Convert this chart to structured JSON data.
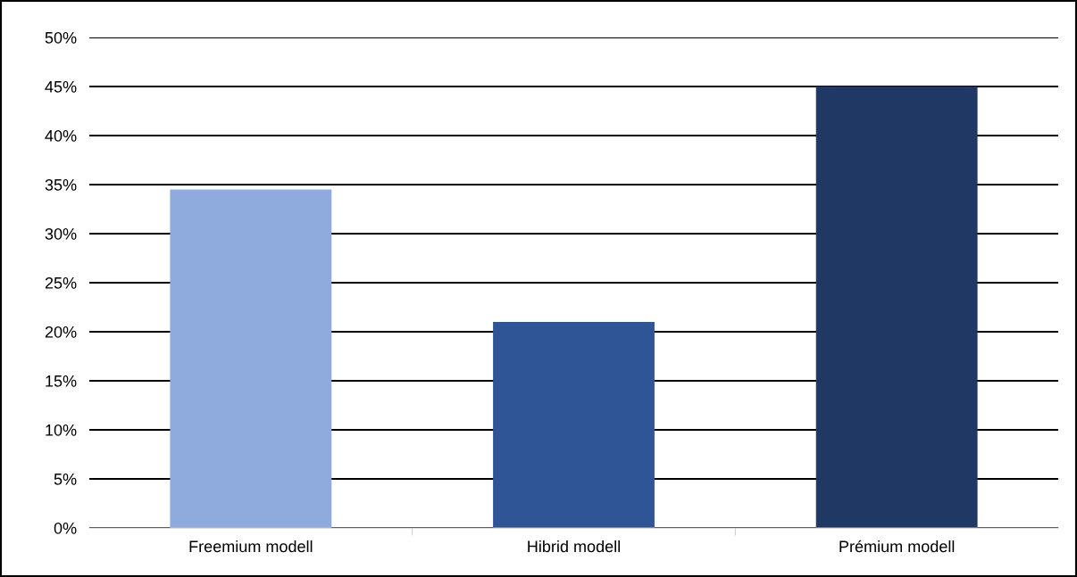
{
  "chart_data": {
    "type": "bar",
    "categories": [
      "Freemium modell",
      "Hibrid modell",
      "Prémium modell"
    ],
    "values": [
      34.5,
      21,
      45
    ],
    "colors": [
      "#8faadc",
      "#2f5597",
      "#203864"
    ],
    "ylim": [
      0,
      50
    ],
    "yticks": [
      {
        "value": 0,
        "label": "0%"
      },
      {
        "value": 5,
        "label": "5%"
      },
      {
        "value": 10,
        "label": "10%"
      },
      {
        "value": 15,
        "label": "15%"
      },
      {
        "value": 20,
        "label": "20%"
      },
      {
        "value": 25,
        "label": "25%"
      },
      {
        "value": 30,
        "label": "30%"
      },
      {
        "value": 35,
        "label": "35%"
      },
      {
        "value": 40,
        "label": "40%"
      },
      {
        "value": 45,
        "label": "45%"
      },
      {
        "value": 50,
        "label": "50%"
      }
    ],
    "grid": "y"
  }
}
